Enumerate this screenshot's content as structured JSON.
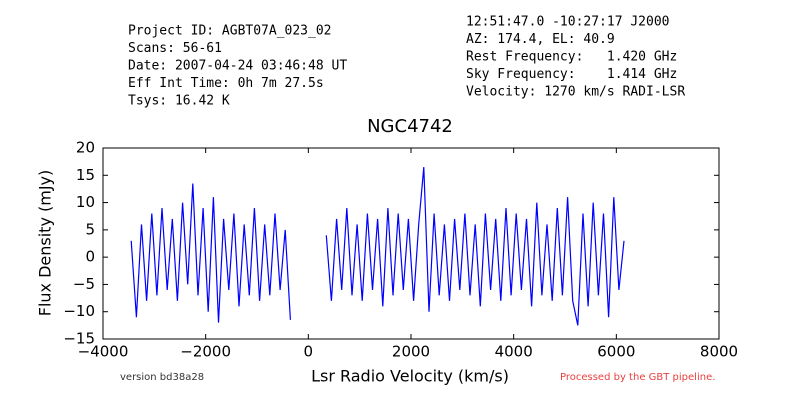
{
  "chart_data": {
    "type": "line",
    "title": "NGC4742",
    "info_left": [
      "Project ID: AGBT07A_023_02",
      "Scans: 56-61",
      "Date: 2007-04-24 03:46:48 UT",
      "Eff Int Time: 0h 7m 27.5s",
      "Tsys: 16.42 K"
    ],
    "info_right": [
      "12:51:47.0 -10:27:17 J2000",
      "AZ: 174.4, EL: 40.9",
      "Rest Frequency:   1.420 GHz",
      "Sky Frequency:    1.414 GHz",
      "Velocity: 1270 km/s RADI-LSR"
    ],
    "x_label": "Lsr Radio Velocity (km/s)",
    "y_label": "Flux Density (mJy)",
    "footer_left": "version bd38a28",
    "footer_right": "Processed by the GBT pipeline.",
    "x": [
      -3450,
      -3350,
      -3250,
      -3150,
      -3050,
      -2950,
      -2850,
      -2750,
      -2650,
      -2550,
      -2450,
      -2350,
      -2250,
      -2150,
      -2050,
      -1950,
      -1850,
      -1750,
      -1650,
      -1550,
      -1450,
      -1350,
      -1250,
      -1150,
      -1050,
      -950,
      -850,
      -750,
      -650,
      -550,
      -450,
      -350,
      0,
      350,
      450,
      550,
      650,
      750,
      850,
      950,
      1050,
      1150,
      1250,
      1350,
      1450,
      1550,
      1650,
      1750,
      1850,
      1950,
      2050,
      2150,
      2250,
      2350,
      2450,
      2550,
      2650,
      2750,
      2850,
      2950,
      3050,
      3150,
      3250,
      3350,
      3450,
      3550,
      3650,
      3750,
      3850,
      3950,
      4050,
      4150,
      4250,
      4350,
      4450,
      4550,
      4650,
      4750,
      4850,
      4950,
      5050,
      5150,
      5250,
      5350,
      5450,
      5550,
      5650,
      5750,
      5850,
      5950,
      6050,
      6150
    ],
    "series": [
      {
        "name": "NGC4742",
        "color": "#0000ff",
        "values": [
          3,
          -11,
          6,
          -8,
          8,
          -7,
          9,
          -6,
          7,
          -8,
          10,
          -5,
          13.5,
          -7,
          9,
          -10,
          11,
          -12,
          7,
          -6,
          8,
          -9,
          6,
          -7,
          9,
          -8,
          6,
          -7,
          8,
          -6,
          5,
          -11.5,
          null,
          4,
          -8,
          7,
          -6,
          9,
          -7,
          6,
          -8,
          8,
          -6,
          7,
          -9,
          9,
          -7,
          8,
          -6,
          7,
          -8,
          6,
          16.5,
          -10,
          8,
          -7,
          6,
          -8,
          7,
          -6,
          8,
          -7,
          6,
          -9,
          8,
          -6,
          7,
          -8,
          9,
          -7,
          8,
          -6,
          7,
          -9,
          10,
          -7,
          6,
          -8,
          9,
          -7,
          11,
          -8,
          -12.5,
          8,
          -9,
          10,
          -7,
          8,
          -11,
          11,
          -6,
          3
        ]
      }
    ],
    "xlim": [
      -4000,
      8000
    ],
    "xticks": [
      {
        "value": -4000,
        "label": "−4000"
      },
      {
        "value": -2000,
        "label": "−2000"
      },
      0,
      2000,
      4000,
      6000,
      8000
    ],
    "ylim": [
      -15,
      20
    ],
    "yticks": [
      {
        "value": -15,
        "label": "−15"
      },
      {
        "value": -10,
        "label": "−10"
      },
      {
        "value": -5,
        "label": "−5"
      },
      0,
      5,
      10,
      15,
      20
    ]
  }
}
